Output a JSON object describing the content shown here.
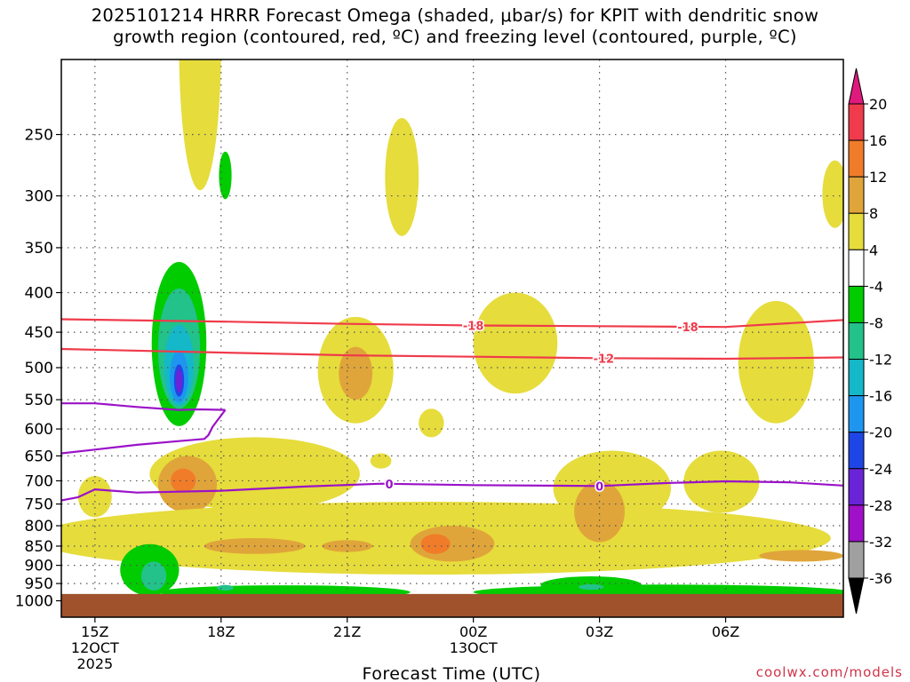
{
  "title": {
    "line1": "2025101214 HRRR Forecast Omega (shaded, μbar/s) for KPIT with dendritic snow",
    "line2": "growth region (contoured, red, ºC) and freezing level (contoured, purple, ºC)"
  },
  "credit": "coolwx.com/models",
  "chart_data": {
    "type": "heatmap",
    "title": "2025101214 HRRR Forecast Omega (shaded, μbar/s) for KPIT with dendritic snow growth region (contoured, red, ºC) and freezing level (contoured, purple, ºC)",
    "xlabel": "Forecast Time (UTC)",
    "ylabel": "",
    "x_unit": "hours after 12Z 12 Oct 2025",
    "xlim": [
      14.2,
      32.8
    ],
    "y_unit": "hPa (pressure, log scale)",
    "ylim": [
      1050,
      200
    ],
    "x_ticks": [
      {
        "x": 15,
        "label": "15Z",
        "sub": [
          "12OCT",
          "2025"
        ]
      },
      {
        "x": 18,
        "label": "18Z",
        "sub": []
      },
      {
        "x": 21,
        "label": "21Z",
        "sub": []
      },
      {
        "x": 24,
        "label": "00Z",
        "sub": [
          "13OCT"
        ]
      },
      {
        "x": 27,
        "label": "03Z",
        "sub": []
      },
      {
        "x": 30,
        "label": "06Z",
        "sub": []
      }
    ],
    "y_ticks": [
      250,
      300,
      350,
      400,
      450,
      500,
      550,
      600,
      650,
      700,
      750,
      800,
      850,
      900,
      950,
      1000
    ],
    "ground_top_hPa": 980,
    "colorbar": [
      {
        "label": "20",
        "color": "#ef3b4b"
      },
      {
        "label": "16",
        "color": "#f07c2a"
      },
      {
        "label": "12",
        "color": "#e0a53a"
      },
      {
        "label": "8",
        "color": "#e6dc3c"
      },
      {
        "label": "4",
        "color": "#ffffff"
      },
      {
        "label": "-4",
        "color": "#00cc00"
      },
      {
        "label": "-8",
        "color": "#22c28a"
      },
      {
        "label": "-12",
        "color": "#14b8c8"
      },
      {
        "label": "-16",
        "color": "#1e96f0"
      },
      {
        "label": "-20",
        "color": "#1e46e6"
      },
      {
        "label": "-24",
        "color": "#6a24d8"
      },
      {
        "label": "-28",
        "color": "#a010c8"
      },
      {
        "label": "-32",
        "color": "#a0a0a0"
      },
      {
        "label": "-36",
        "color": "#000000"
      }
    ],
    "colorbar_top_color": "#e0197d",
    "colors": {
      "y4": "#e6dc3c",
      "y8": "#e0a53a",
      "o12": "#f07c2a",
      "g4": "#00cc00",
      "g8": "#22c28a",
      "c12": "#14b8c8",
      "b16": "#1e96f0",
      "b20": "#1e46e6",
      "p24": "#6a24d8",
      "ground": "#a0522d",
      "dgz": "#ef3b4b",
      "freezing": "#9b12c8"
    },
    "omega_regions": [
      {
        "band": "4 to 8",
        "cx": 17.5,
        "cy": 210,
        "rx": 0.5,
        "ry": 85
      },
      {
        "band": "4 to 8",
        "cx": 22.3,
        "cy": 288,
        "rx": 0.4,
        "ry": 50
      },
      {
        "band": "4 to 8",
        "cx": 32.6,
        "cy": 300,
        "rx": 0.3,
        "ry": 30
      },
      {
        "band": "-4 to -8",
        "cx": 18.1,
        "cy": 283,
        "rx": 0.15,
        "ry": 20
      },
      {
        "band": "-4 to -8",
        "cx": 17.0,
        "cy": 480,
        "rx": 0.65,
        "ry": 115
      },
      {
        "band": "-8 to -12",
        "cx": 17.0,
        "cy": 480,
        "rx": 0.5,
        "ry": 85
      },
      {
        "band": "-12 to -16",
        "cx": 17.0,
        "cy": 500,
        "rx": 0.35,
        "ry": 60
      },
      {
        "band": "-16 to -20",
        "cx": 17.0,
        "cy": 515,
        "rx": 0.22,
        "ry": 40
      },
      {
        "band": "-20 to -24",
        "cx": 17.0,
        "cy": 520,
        "rx": 0.12,
        "ry": 25
      },
      {
        "band": "-24 to -28",
        "cx": 17.0,
        "cy": 520,
        "rx": 0.08,
        "ry": 18
      },
      {
        "band": "4 to 8",
        "cx": 21.2,
        "cy": 510,
        "rx": 0.9,
        "ry": 80
      },
      {
        "band": "8 to 12",
        "cx": 21.2,
        "cy": 510,
        "rx": 0.4,
        "ry": 40
      },
      {
        "band": "4 to 8",
        "cx": 25.0,
        "cy": 470,
        "rx": 1.0,
        "ry": 70
      },
      {
        "band": "4 to 8",
        "cx": 31.2,
        "cy": 500,
        "rx": 0.9,
        "ry": 90
      },
      {
        "band": "4 to 8",
        "cx": 23.0,
        "cy": 590,
        "rx": 0.3,
        "ry": 25
      },
      {
        "band": "4 to 8",
        "cx": 21.8,
        "cy": 660,
        "rx": 0.25,
        "ry": 15
      },
      {
        "band": "4 to 8",
        "cx": 18.8,
        "cy": 690,
        "rx": 2.5,
        "ry": 75
      },
      {
        "band": "8 to 12",
        "cx": 17.2,
        "cy": 710,
        "rx": 0.7,
        "ry": 60
      },
      {
        "band": "12 to 16",
        "cx": 17.1,
        "cy": 700,
        "rx": 0.3,
        "ry": 25
      },
      {
        "band": "4 to 8",
        "cx": 15.0,
        "cy": 735,
        "rx": 0.4,
        "ry": 45
      },
      {
        "band": "4 to 8",
        "cx": 23.0,
        "cy": 835,
        "rx": 9.5,
        "ry": 90
      },
      {
        "band": "4 to 8",
        "cx": 27.3,
        "cy": 720,
        "rx": 1.4,
        "ry": 80
      },
      {
        "band": "8 to 12",
        "cx": 27.0,
        "cy": 770,
        "rx": 0.6,
        "ry": 70
      },
      {
        "band": "4 to 8",
        "cx": 29.9,
        "cy": 705,
        "rx": 0.9,
        "ry": 65
      },
      {
        "band": "8 to 12",
        "cx": 18.8,
        "cy": 850,
        "rx": 1.2,
        "ry": 20
      },
      {
        "band": "8 to 12",
        "cx": 21.0,
        "cy": 850,
        "rx": 0.6,
        "ry": 15
      },
      {
        "band": "8 to 12",
        "cx": 23.5,
        "cy": 845,
        "rx": 1.0,
        "ry": 45
      },
      {
        "band": "12 to 16",
        "cx": 23.1,
        "cy": 845,
        "rx": 0.35,
        "ry": 25
      },
      {
        "band": "8 to 12",
        "cx": 31.8,
        "cy": 875,
        "rx": 1.0,
        "ry": 15
      },
      {
        "band": "-4 to -8",
        "cx": 16.3,
        "cy": 915,
        "rx": 0.7,
        "ry": 70
      },
      {
        "band": "-8 to -12",
        "cx": 16.4,
        "cy": 930,
        "rx": 0.3,
        "ry": 40
      },
      {
        "band": "-4 to -8",
        "cx": 19.5,
        "cy": 975,
        "rx": 3.0,
        "ry": 20
      },
      {
        "band": "-4 to -8",
        "cx": 28.5,
        "cy": 975,
        "rx": 4.5,
        "ry": 22
      },
      {
        "band": "-4 to -8",
        "cx": 26.8,
        "cy": 955,
        "rx": 1.2,
        "ry": 25
      },
      {
        "band": "-8 to -12",
        "cx": 26.8,
        "cy": 960,
        "rx": 0.3,
        "ry": 8
      },
      {
        "band": "-8 to -12",
        "cx": 18.1,
        "cy": 962,
        "rx": 0.2,
        "ry": 8
      }
    ],
    "dendritic_contours": [
      {
        "label": "-18",
        "label_positions": [
          24,
          29.1
        ],
        "points": [
          [
            14.2,
            433
          ],
          [
            18,
            436
          ],
          [
            21,
            439
          ],
          [
            24,
            441
          ],
          [
            27,
            442
          ],
          [
            30,
            443
          ],
          [
            32.8,
            434
          ]
        ]
      },
      {
        "label": "-12",
        "label_positions": [
          27.1
        ],
        "points": [
          [
            14.2,
            473
          ],
          [
            18,
            478
          ],
          [
            21,
            482
          ],
          [
            24,
            484
          ],
          [
            27,
            486
          ],
          [
            30,
            487
          ],
          [
            32.8,
            485
          ]
        ]
      }
    ],
    "freezing_contours": [
      {
        "label": "0",
        "label_positions": [
          22,
          27
        ],
        "points": [
          [
            14.2,
            742
          ],
          [
            14.6,
            735
          ],
          [
            15,
            718
          ],
          [
            16,
            725
          ],
          [
            18,
            721
          ],
          [
            20,
            712
          ],
          [
            21.8,
            706
          ],
          [
            24,
            709
          ],
          [
            27,
            711
          ],
          [
            28.5,
            705
          ],
          [
            30,
            701
          ],
          [
            31.5,
            703
          ],
          [
            32.8,
            710
          ]
        ]
      },
      {
        "label": "0",
        "label_positions": [],
        "points": [
          [
            14.2,
            556
          ],
          [
            15,
            556
          ],
          [
            16,
            562
          ],
          [
            17,
            567
          ],
          [
            17.5,
            566
          ],
          [
            18.1,
            567
          ]
        ]
      },
      {
        "label": "0",
        "label_positions": [],
        "points": [
          [
            14.2,
            645
          ],
          [
            15,
            638
          ],
          [
            16,
            629
          ],
          [
            17,
            622
          ],
          [
            17.6,
            618
          ],
          [
            17.7,
            611
          ],
          [
            17.8,
            596
          ],
          [
            18.1,
            567
          ]
        ]
      }
    ]
  }
}
